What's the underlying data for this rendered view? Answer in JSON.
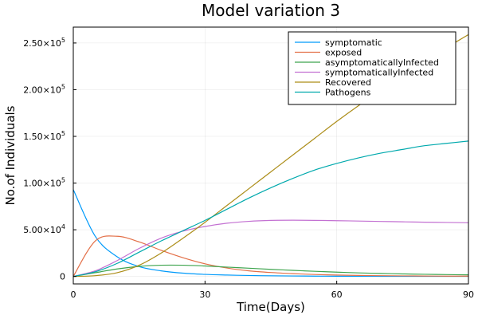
{
  "chart_data": {
    "type": "line",
    "title": "Model variation 3",
    "xlabel": "Time(Days)",
    "ylabel": "No.of Individuals",
    "xlim": [
      0,
      90
    ],
    "ylim": [
      -8000,
      267000
    ],
    "x_ticks": [
      0,
      30,
      60,
      90
    ],
    "x_tick_labels": [
      "0",
      "30",
      "60",
      "90"
    ],
    "y_ticks": [
      0,
      50000,
      100000,
      150000,
      200000,
      250000
    ],
    "y_tick_labels": [
      {
        "mantissa": "0",
        "exp": ""
      },
      {
        "mantissa": "5.00×10",
        "exp": "4"
      },
      {
        "mantissa": "1.00×10",
        "exp": "5"
      },
      {
        "mantissa": "1.50×10",
        "exp": "5"
      },
      {
        "mantissa": "2.00×10",
        "exp": "5"
      },
      {
        "mantissa": "2.50×10",
        "exp": "5"
      }
    ],
    "grid": true,
    "legend_position": "top-right",
    "x": [
      0,
      5,
      10,
      15,
      20,
      25,
      30,
      35,
      40,
      45,
      50,
      55,
      60,
      65,
      70,
      75,
      80,
      85,
      90
    ],
    "series": [
      {
        "name": "symptomatic",
        "color": "#009AFA",
        "values": [
          93000,
          43000,
          21000,
          10500,
          6000,
          3500,
          2200,
          1500,
          1000,
          700,
          500,
          350,
          250,
          180,
          130,
          100,
          80,
          60,
          50
        ]
      },
      {
        "name": "exposed",
        "color": "#E36F47",
        "values": [
          0,
          38000,
          43000,
          37000,
          28000,
          20000,
          13500,
          9000,
          6000,
          4200,
          3000,
          2100,
          1500,
          1100,
          800,
          600,
          450,
          350,
          300
        ]
      },
      {
        "name": "asymptomaticallyInfected",
        "color": "#3EA44E",
        "values": [
          0,
          4000,
          8000,
          10800,
          12000,
          12000,
          11200,
          10000,
          8800,
          7600,
          6500,
          5500,
          4600,
          3800,
          3200,
          2700,
          2300,
          2000,
          1700
        ]
      },
      {
        "name": "symptomaticallyInfected",
        "color": "#C371D2",
        "values": [
          0,
          6000,
          17000,
          30000,
          41000,
          48500,
          53500,
          57000,
          59000,
          60000,
          60200,
          60000,
          59700,
          59300,
          58900,
          58500,
          58100,
          57800,
          57500
        ]
      },
      {
        "name": "Recovered",
        "color": "#AC8D18",
        "values": [
          0,
          800,
          4000,
          12000,
          25000,
          41000,
          58000,
          76000,
          94000,
          112000,
          130000,
          148000,
          166000,
          183000,
          199000,
          215000,
          231000,
          245000,
          259000
        ]
      },
      {
        "name": "Pathogens",
        "color": "#00A9AD",
        "values": [
          0,
          5000,
          14000,
          26000,
          38000,
          49000,
          60000,
          72000,
          84000,
          95000,
          105000,
          114000,
          121000,
          127000,
          132000,
          136000,
          140000,
          142500,
          145000
        ]
      }
    ]
  }
}
